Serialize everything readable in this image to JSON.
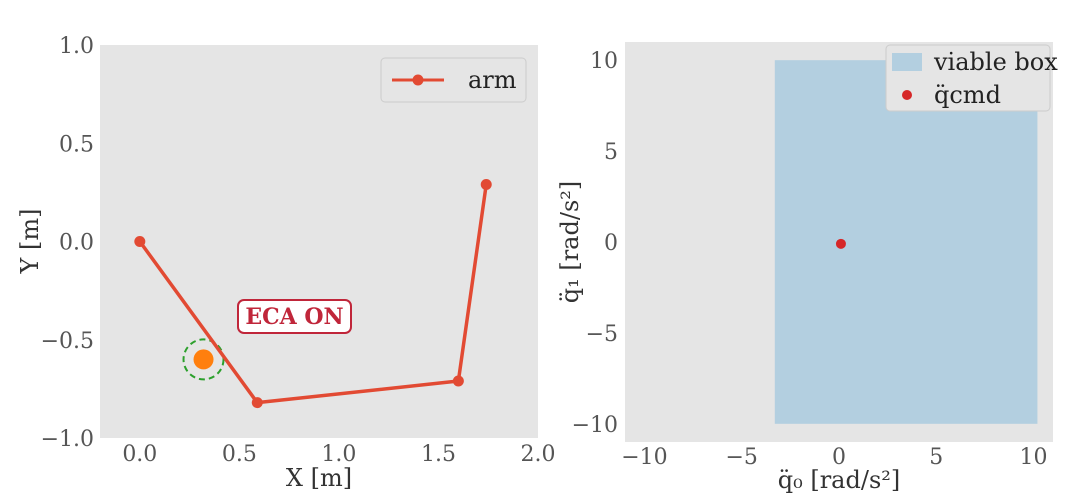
{
  "chart_data": [
    {
      "type": "line",
      "xlabel": "X [m]",
      "ylabel": "Y [m]",
      "xlim": [
        -0.2,
        2.0
      ],
      "ylim": [
        -1.0,
        1.0
      ],
      "xticks": [
        "0.0",
        "0.5",
        "1.0",
        "1.5",
        "2.0"
      ],
      "yticks": [
        "1.0",
        "0.5",
        "0.0",
        "−0.5",
        "−1.0"
      ],
      "grid": false,
      "legend_position": "top-right",
      "series": [
        {
          "name": "arm",
          "color": "#e24a33",
          "x": [
            0.0,
            0.59,
            1.6,
            1.74
          ],
          "y": [
            0.0,
            -0.82,
            -0.71,
            0.29
          ]
        }
      ],
      "obstacle": {
        "x": 0.32,
        "y": -0.6,
        "color": "#ff7f0e",
        "boundary_color": "#2ca02c"
      },
      "annotation": "ECA ON"
    },
    {
      "type": "scatter",
      "xlabel": "q̈₀ [rad/s²]",
      "ylabel": "q̈₁ [rad/s²]",
      "xlim": [
        -11,
        11
      ],
      "ylim": [
        -11,
        11
      ],
      "xticks": [
        "−10",
        "−5",
        "0",
        "5",
        "10"
      ],
      "yticks": [
        "10",
        "5",
        "0",
        "−5",
        "−10"
      ],
      "grid": false,
      "legend_position": "top-right",
      "viable_box": {
        "name": "viable box",
        "x": [
          -3.3,
          10.2
        ],
        "y": [
          -10,
          10
        ],
        "color": "#b3cfe0"
      },
      "series": [
        {
          "name": "q̈cmd",
          "color": "#d62728",
          "x": [
            0.1
          ],
          "y": [
            -0.1
          ]
        }
      ]
    }
  ]
}
